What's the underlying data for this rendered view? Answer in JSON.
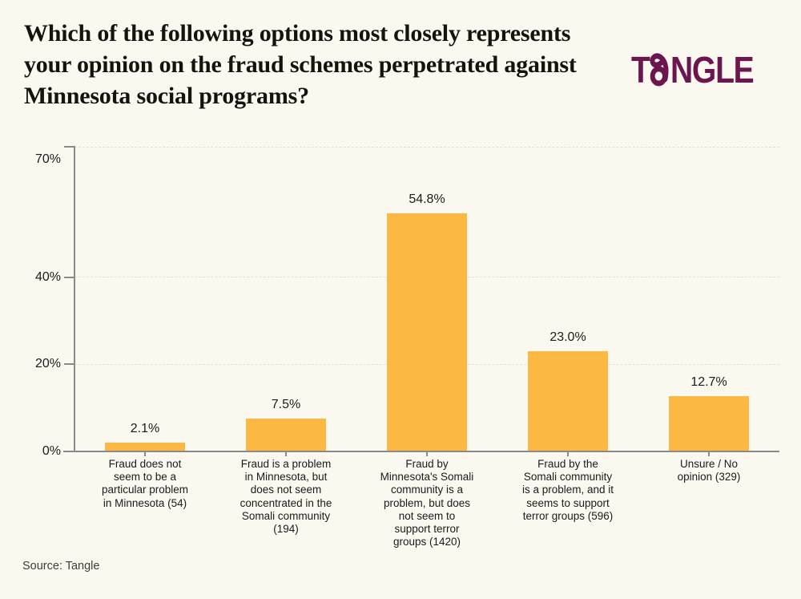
{
  "page": {
    "background": "#FAF8EF"
  },
  "header": {
    "title": "Which of the following options most closely represents your opinion on the fraud schemes perpetrated against Minnesota social programs?",
    "logo_text": "TANGLE",
    "logo_prefix": "T",
    "logo_suffix": "NGLE",
    "logo_color": "#6C164F"
  },
  "chart_data": {
    "type": "bar",
    "title": "Which of the following options most closely represents your opinion on the fraud schemes perpetrated against Minnesota social programs?",
    "categories": [
      "Fraud does not\nseem to be a\nparticular problem\nin Minnesota (54)",
      "Fraud is a problem\nin Minnesota, but\ndoes not seem\nconcentrated in the\nSomali community\n(194)",
      "Fraud by\nMinnesota's Somali\ncommunity is a\nproblem, but does\nnot seem to\nsupport terror\ngroups (1420)",
      "Fraud by the\nSomali community\nis a problem, and it\nseems to support\nterror groups (596)",
      "Unsure / No\nopinion (329)"
    ],
    "values": [
      2.1,
      7.5,
      54.8,
      23.0,
      12.7
    ],
    "value_labels": [
      "2.1%",
      "7.5%",
      "54.8%",
      "23.0%",
      "12.7%"
    ],
    "xlabel": "",
    "ylabel": "",
    "ylim": [
      0,
      70
    ],
    "yticks": [
      {
        "value": 70,
        "label": "70%"
      },
      {
        "value": 40,
        "label": "40%"
      },
      {
        "value": 20,
        "label": "20%"
      },
      {
        "value": 0,
        "label": "0%"
      }
    ],
    "gridlines": [
      70,
      40,
      20
    ],
    "grid_style": "dashed",
    "legend": "none",
    "bar_color": "#FBB843",
    "axis_color": "#8a8a8a",
    "grid_color": "#e5e1d2",
    "label_color": "#1b1b1b"
  },
  "footer": {
    "source": "Source: Tangle"
  }
}
